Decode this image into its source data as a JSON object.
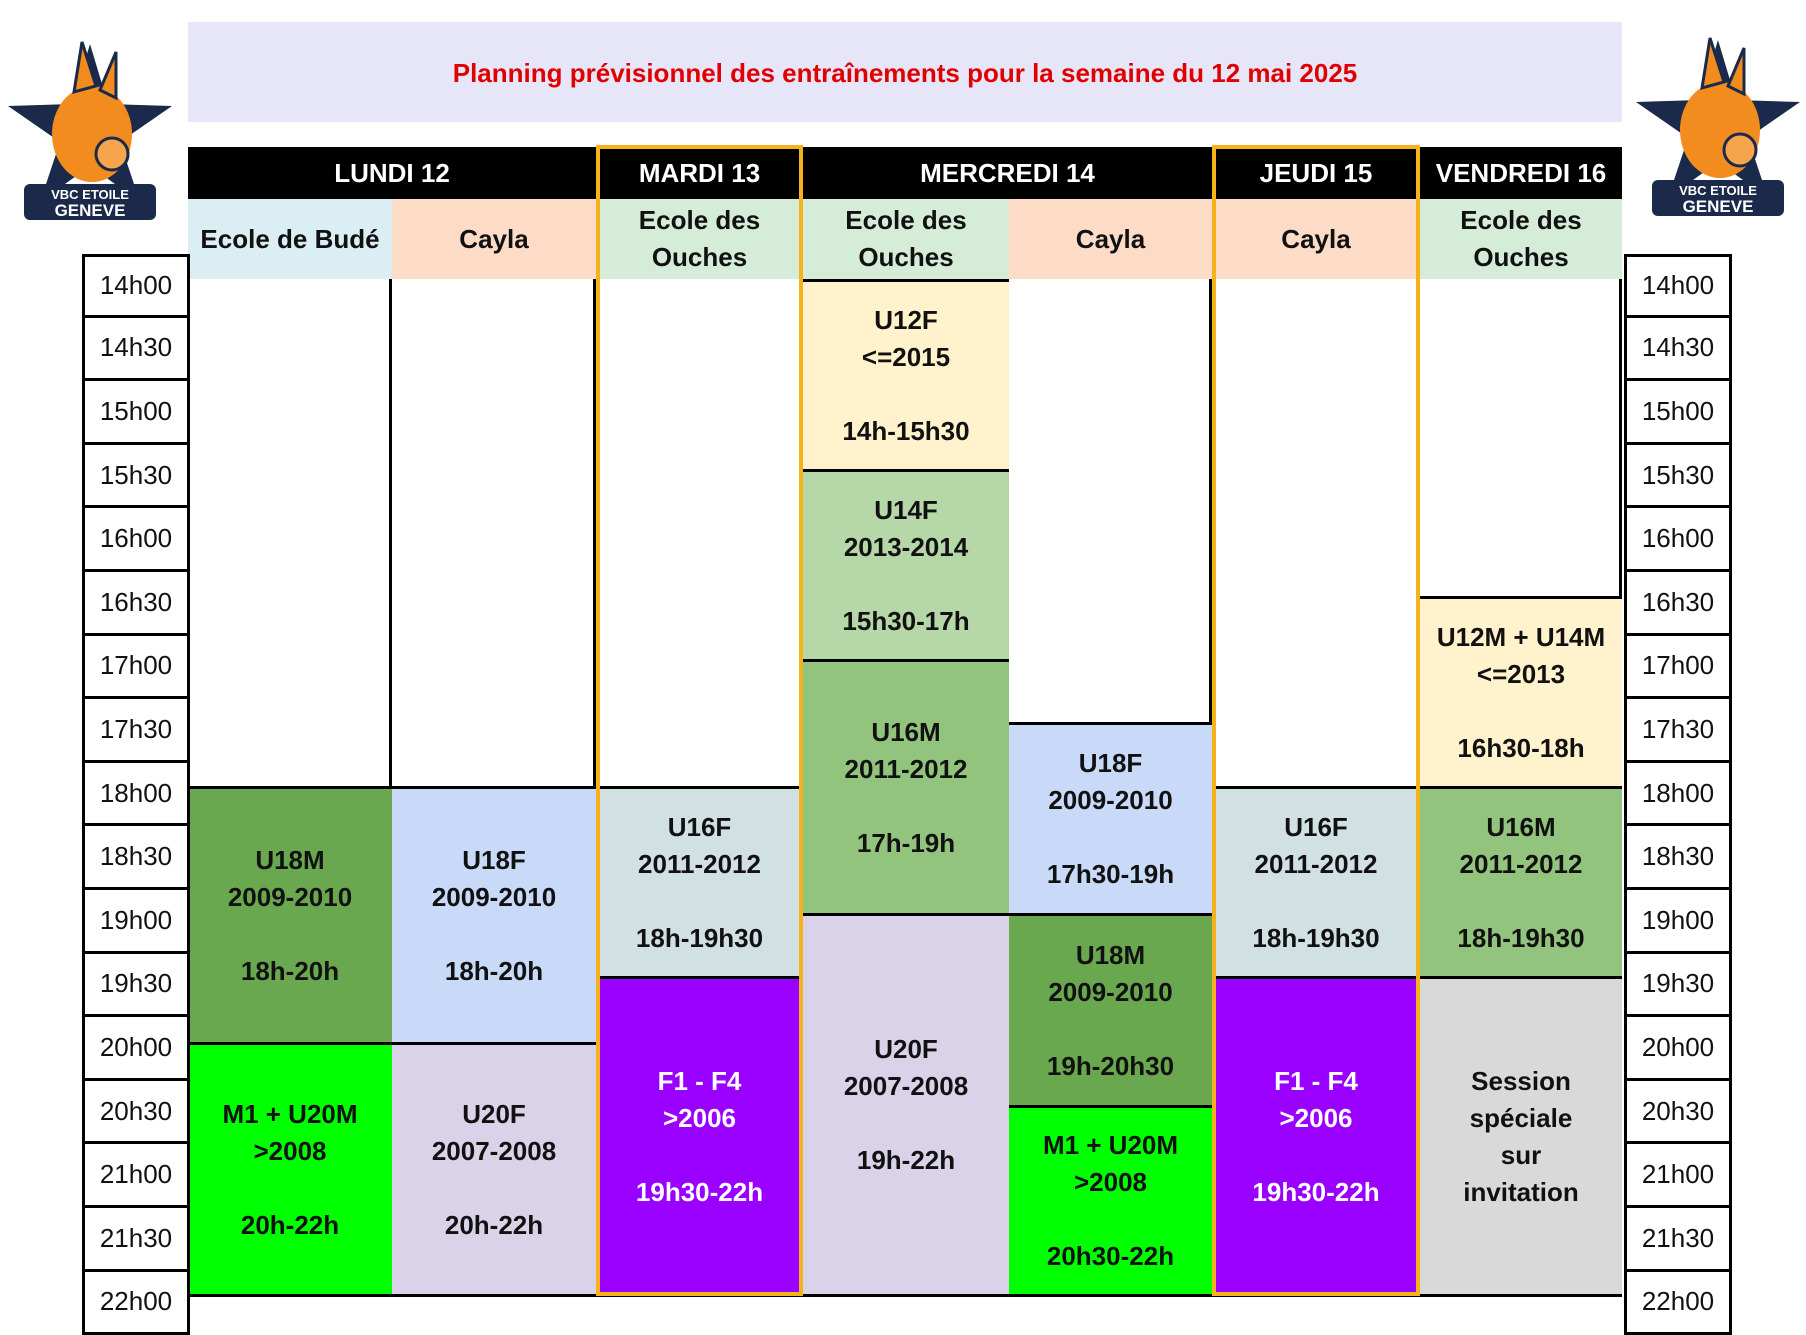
{
  "title": "Planning prévisionnel des entraînements pour la semaine du 12 mai 2025",
  "logo": {
    "text_line1": "VBC ETOILE",
    "text_line2": "GENEVE",
    "colors": {
      "orange": "#f28c1e",
      "navy": "#1b2a4a"
    }
  },
  "days": [
    "LUNDI 12",
    "MARDI 13",
    "MERCREDI 14",
    "JEUDI 15",
    "VENDREDI 16"
  ],
  "venues": [
    {
      "label": "Ecole de Budé",
      "color": "#daeef3"
    },
    {
      "label": "Cayla",
      "color": "#fcdcc6"
    },
    {
      "label": "Ecole des\nOuches",
      "color": "#d4ecd8"
    },
    {
      "label": "Ecole des\nOuches",
      "color": "#d4ecd8"
    },
    {
      "label": "Cayla",
      "color": "#fcdcc6"
    },
    {
      "label": "Cayla",
      "color": "#fcdcc6"
    },
    {
      "label": "Ecole des\nOuches",
      "color": "#d4ecd8"
    }
  ],
  "times": [
    "14h00",
    "14h30",
    "15h00",
    "15h30",
    "16h00",
    "16h30",
    "17h00",
    "17h30",
    "18h00",
    "18h30",
    "19h00",
    "19h30",
    "20h00",
    "20h30",
    "21h00",
    "21h30",
    "22h00"
  ],
  "sessions": [
    {
      "col": 0,
      "text": "U18M\n2009-2010\n\n18h-20h",
      "color": "#6aa84f"
    },
    {
      "col": 0,
      "text": "M1 + U20M\n>2008\n\n20h-22h",
      "color": "#00ff00"
    },
    {
      "col": 1,
      "text": "U18F\n2009-2010\n\n18h-20h",
      "color": "#c9daf8"
    },
    {
      "col": 1,
      "text": "U20F\n2007-2008\n\n20h-22h",
      "color": "#d9d2e9"
    },
    {
      "col": 2,
      "text": "U16F\n2011-2012\n\n18h-19h30",
      "color": "#d0e0e3"
    },
    {
      "col": 2,
      "text": "F1 - F4\n>2006\n\n19h30-22h",
      "color": "#9900ff"
    },
    {
      "col": 3,
      "text": "U12F\n<=2015\n\n14h-15h30",
      "color": "#fff2cc"
    },
    {
      "col": 3,
      "text": "U14F\n2013-2014\n\n15h30-17h",
      "color": "#b6d7a8"
    },
    {
      "col": 3,
      "text": "U16M\n2011-2012\n\n17h-19h",
      "color": "#93c47d"
    },
    {
      "col": 3,
      "text": "U20F\n2007-2008\n\n19h-22h",
      "color": "#d9d2e9"
    },
    {
      "col": 4,
      "text": "U18F\n2009-2010\n\n17h30-19h",
      "color": "#c9daf8"
    },
    {
      "col": 4,
      "text": "U18M\n2009-2010\n\n19h-20h30",
      "color": "#6aa84f"
    },
    {
      "col": 4,
      "text": "M1 + U20M\n>2008\n\n20h30-22h",
      "color": "#00ff00"
    },
    {
      "col": 5,
      "text": "U16F\n2011-2012\n\n18h-19h30",
      "color": "#d0e0e3"
    },
    {
      "col": 5,
      "text": "F1 - F4\n>2006\n\n19h30-22h",
      "color": "#9900ff"
    },
    {
      "col": 6,
      "text": "U12M + U14M\n<=2013\n\n16h30-18h",
      "color": "#fff2cc"
    },
    {
      "col": 6,
      "text": "U16M\n2011-2012\n\n18h-19h30",
      "color": "#93c47d"
    },
    {
      "col": 6,
      "text": "Session\nspéciale\nsur\ninvitation",
      "color": "#d9d9d9"
    }
  ],
  "highlight_color": "#f5b21b"
}
